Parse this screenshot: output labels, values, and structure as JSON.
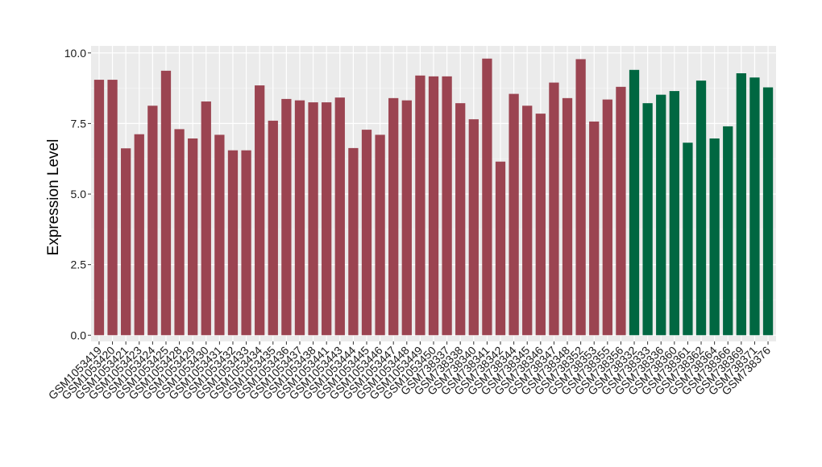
{
  "chart_data": {
    "type": "bar",
    "xlabel": "",
    "ylabel": "Expression Level",
    "ylim": [
      0,
      10
    ],
    "yticks": [
      "0.0",
      "2.5",
      "5.0",
      "7.5",
      "10.0"
    ],
    "ytick_values": [
      0,
      2.5,
      5,
      7.5,
      10
    ],
    "grid": true,
    "background": "#ebebeb",
    "group_colors": {
      "group_a": "#9b4451",
      "group_b": "#006741"
    },
    "categories": [
      "GSM1053419",
      "GSM1053420",
      "GSM1053421",
      "GSM1053423",
      "GSM1053424",
      "GSM1053425",
      "GSM1053428",
      "GSM1053429",
      "GSM1053430",
      "GSM1053431",
      "GSM1053432",
      "GSM1053433",
      "GSM1053434",
      "GSM1053435",
      "GSM1053436",
      "GSM1053437",
      "GSM1053438",
      "GSM1053441",
      "GSM1053443",
      "GSM1053444",
      "GSM1053445",
      "GSM1053446",
      "GSM1053447",
      "GSM1053448",
      "GSM1053449",
      "GSM1053450",
      "GSM738337",
      "GSM738338",
      "GSM738340",
      "GSM738341",
      "GSM738342",
      "GSM738344",
      "GSM738345",
      "GSM738346",
      "GSM738347",
      "GSM738348",
      "GSM738352",
      "GSM738353",
      "GSM738355",
      "GSM738356",
      "GSM738332",
      "GSM738333",
      "GSM738336",
      "GSM738360",
      "GSM738361",
      "GSM738362",
      "GSM738364",
      "GSM738366",
      "GSM738369",
      "GSM738371",
      "GSM738376"
    ],
    "values": [
      9.05,
      9.05,
      6.62,
      7.12,
      8.13,
      9.37,
      7.3,
      6.97,
      8.28,
      7.1,
      6.55,
      6.55,
      8.85,
      7.6,
      8.37,
      8.32,
      8.25,
      8.25,
      8.42,
      6.63,
      7.28,
      7.1,
      8.4,
      8.32,
      9.2,
      9.17,
      9.17,
      8.22,
      7.65,
      9.8,
      6.15,
      8.55,
      8.13,
      7.85,
      8.95,
      8.4,
      9.78,
      7.57,
      8.35,
      8.8,
      9.4,
      8.22,
      8.52,
      8.65,
      6.82,
      9.02,
      6.97,
      7.4,
      9.28,
      9.13,
      8.78
    ],
    "groups": [
      "group_a",
      "group_a",
      "group_a",
      "group_a",
      "group_a",
      "group_a",
      "group_a",
      "group_a",
      "group_a",
      "group_a",
      "group_a",
      "group_a",
      "group_a",
      "group_a",
      "group_a",
      "group_a",
      "group_a",
      "group_a",
      "group_a",
      "group_a",
      "group_a",
      "group_a",
      "group_a",
      "group_a",
      "group_a",
      "group_a",
      "group_a",
      "group_a",
      "group_a",
      "group_a",
      "group_a",
      "group_a",
      "group_a",
      "group_a",
      "group_a",
      "group_a",
      "group_a",
      "group_a",
      "group_a",
      "group_a",
      "group_b",
      "group_b",
      "group_b",
      "group_b",
      "group_b",
      "group_b",
      "group_b",
      "group_b",
      "group_b",
      "group_b",
      "group_b"
    ]
  }
}
